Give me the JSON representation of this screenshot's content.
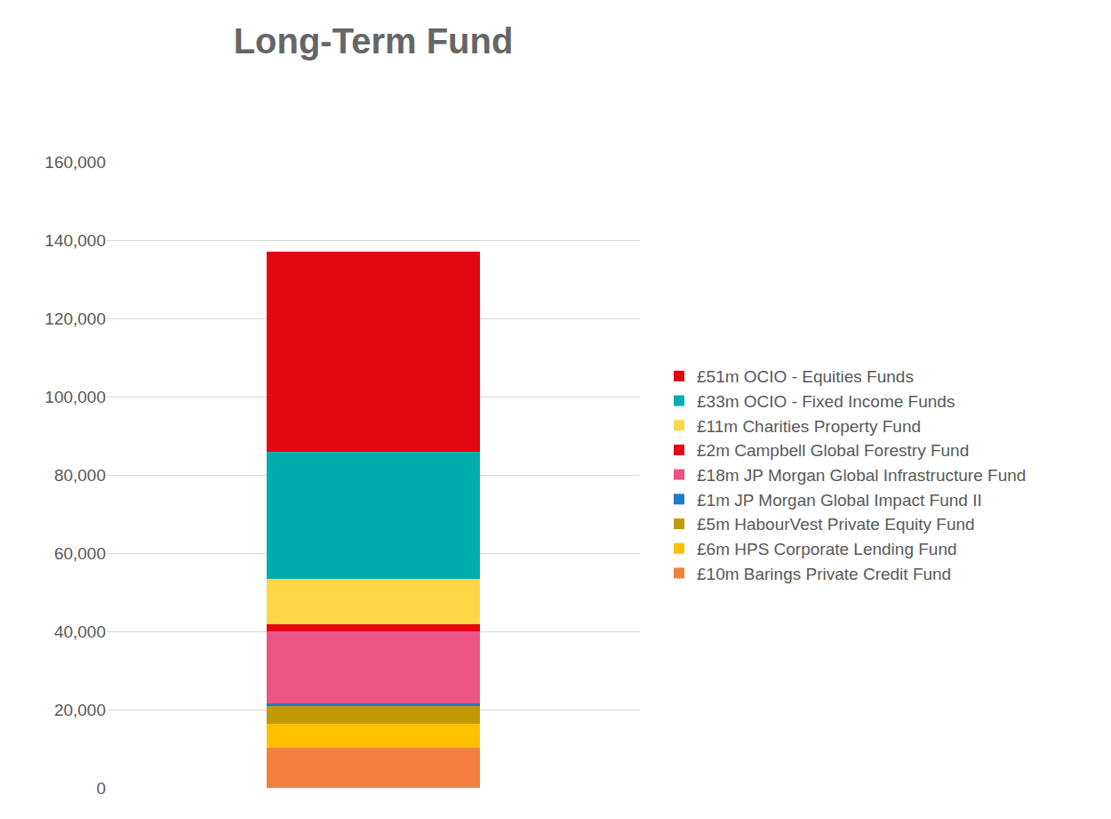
{
  "chart_data": {
    "type": "bar",
    "title": "Long-Term Fund",
    "categories": [
      null
    ],
    "stacked": true,
    "legend": "right",
    "grid": true,
    "tick_labels": "y",
    "ylim": [
      0,
      160000
    ],
    "yticks": [
      0,
      {
        "value": 20000,
        "label": "20,000"
      },
      {
        "value": 40000,
        "label": "40,000"
      },
      {
        "value": 60000,
        "label": "60,000"
      },
      {
        "value": 80000,
        "label": "80,000"
      },
      {
        "value": 100000,
        "label": "100,000"
      },
      {
        "value": 120000,
        "label": "120,000"
      },
      {
        "value": 140000,
        "label": "140,000"
      },
      {
        "value": 160000,
        "label": "160,000"
      }
    ],
    "series": [
      {
        "name": "£10m Barings Private Credit Fund",
        "color": "#F0803C",
        "values": [
          10200
        ]
      },
      {
        "name": "£6m HPS Corporate Lending Fund",
        "color": "#FFC000",
        "values": [
          6100
        ]
      },
      {
        "name": "£5m HabourVest Private Equity Fund",
        "color": "#C09A00",
        "values": [
          4500
        ]
      },
      {
        "name": "£1m JP Morgan Global Impact Fund II",
        "color": "#1F7ACD",
        "values": [
          900
        ]
      },
      {
        "name": "£18m JP Morgan Global Infrastructure Fund",
        "color": "#EC5484",
        "values": [
          18200
        ]
      },
      {
        "name": "£2m Campbell Global Forestry Fund",
        "color": "#E30613",
        "values": [
          2000
        ]
      },
      {
        "name": "£11m Charities Property Fund",
        "color": "#FFD746",
        "values": [
          11400
        ]
      },
      {
        "name": "£33m OCIO - Fixed Income Funds",
        "color": "#00ADAD",
        "values": [
          32700
        ]
      },
      {
        "name": "£51m OCIO - Equities Funds",
        "color": "#E30613",
        "values": [
          51100
        ]
      }
    ]
  }
}
